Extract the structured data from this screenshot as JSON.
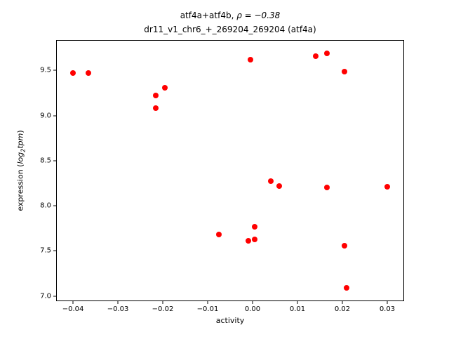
{
  "chart_data": {
    "type": "scatter",
    "title_prefix": "atf4a+atf4b, ",
    "title_math": "ρ = −0.38",
    "subtitle": "dr11_v1_chr6_+_269204_269204 (atf4a)",
    "xlabel": "activity",
    "ylabel_prefix": "expression (",
    "ylabel_math": "log",
    "ylabel_math_sub": "2",
    "ylabel_math_tail": "tpm",
    "ylabel_suffix": ")",
    "marker_color": "#ff0000",
    "xlim": [
      -0.0436,
      0.0336
    ],
    "ylim": [
      6.95,
      9.83
    ],
    "xticks": [
      -0.04,
      -0.03,
      -0.02,
      -0.01,
      0.0,
      0.01,
      0.02,
      0.03
    ],
    "yticks": [
      7.0,
      7.5,
      8.0,
      8.5,
      9.0,
      9.5
    ],
    "points": [
      [
        -0.04,
        9.47
      ],
      [
        -0.0365,
        9.47
      ],
      [
        -0.0215,
        9.22
      ],
      [
        -0.0215,
        9.08
      ],
      [
        -0.0195,
        9.31
      ],
      [
        -0.0005,
        9.62
      ],
      [
        0.014,
        9.66
      ],
      [
        0.0165,
        9.69
      ],
      [
        0.0205,
        9.49
      ],
      [
        0.004,
        8.27
      ],
      [
        0.006,
        8.22
      ],
      [
        0.0165,
        8.2
      ],
      [
        0.03,
        8.21
      ],
      [
        -0.0075,
        7.68
      ],
      [
        0.0005,
        7.77
      ],
      [
        -0.001,
        7.61
      ],
      [
        0.0005,
        7.63
      ],
      [
        0.0205,
        7.56
      ],
      [
        0.021,
        7.09
      ]
    ]
  }
}
